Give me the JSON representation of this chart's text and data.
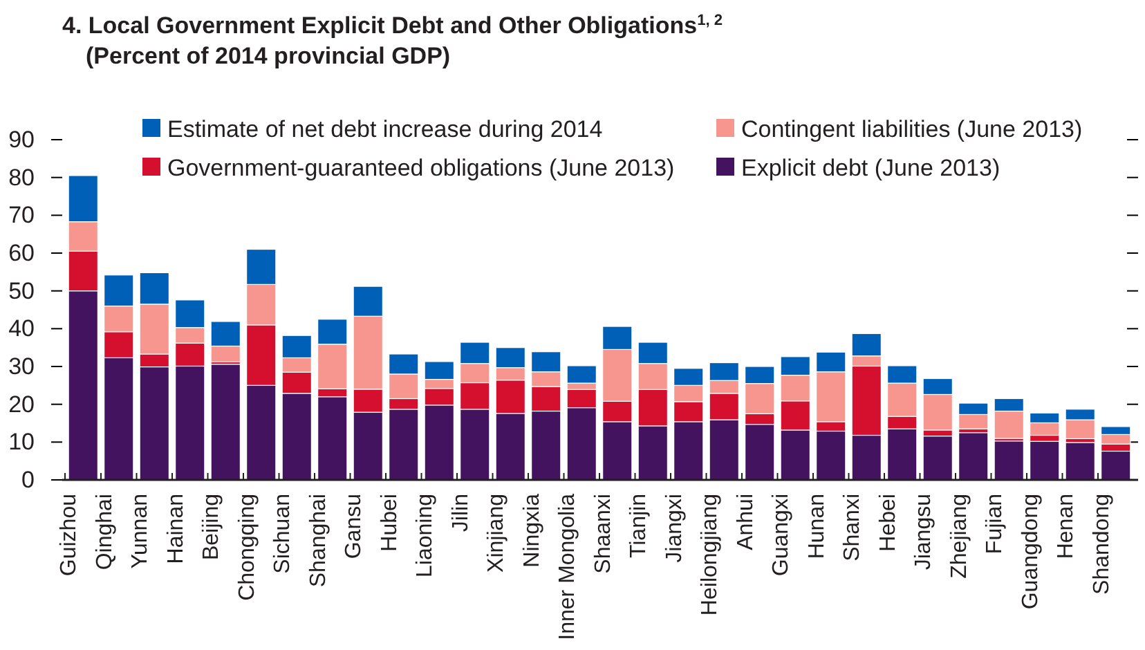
{
  "chart_data": {
    "type": "bar",
    "title": "4. Local Government Explicit Debt and Other Obligations$^{1, 2}$",
    "subtitle": "(Percent of 2014 provincial GDP)",
    "categories": [
      "Guizhou",
      "Qinghai",
      "Yunnan",
      "Hainan",
      "Beijing",
      "Chongqing",
      "Sichuan",
      "Shanghai",
      "Gansu",
      "Hubei",
      "Liaoning",
      "Jilin",
      "Xinjiang",
      "Ningxia",
      "Inner Mongolia",
      "Shaanxi",
      "Tianjin",
      "Jiangxi",
      "Heilongjiang",
      "Anhui",
      "Guangxi",
      "Hunan",
      "Shanxi",
      "Hebei",
      "Jiangsu",
      "Zhejiang",
      "Fujian",
      "Guangdong",
      "Henan",
      "Shandong"
    ],
    "stacked": true,
    "series": [
      {
        "name": "Explicit debt (June 2013)",
        "color": "#44135f",
        "values": [
          50,
          32.3,
          29.9,
          30.1,
          30.6,
          25,
          22.9,
          22,
          17.9,
          18.7,
          19.8,
          18.7,
          17.6,
          18.2,
          19.1,
          15.4,
          14.3,
          15.4,
          15.9,
          14.7,
          13.2,
          12.9,
          11.8,
          13.5,
          11.6,
          12.5,
          10.3,
          10.2,
          9.9,
          7.6
        ]
      },
      {
        "name": "Government-guaranteed obligations (June 2013)",
        "color": "#d50f2e",
        "values": [
          10.5,
          6.9,
          3.4,
          6.1,
          0.6,
          16,
          5.6,
          2.1,
          6.1,
          2.8,
          4.4,
          7,
          8.8,
          6.5,
          4.8,
          5.4,
          9.6,
          5.3,
          7,
          2.8,
          7.7,
          2.5,
          18.3,
          3.3,
          1.6,
          1,
          0.7,
          1.6,
          1,
          1.9
        ]
      },
      {
        "name": "Contingent liabilities (June 2013)",
        "color": "#f7968e",
        "values": [
          7.8,
          6.8,
          13.2,
          4.1,
          4.2,
          10.7,
          3.8,
          11.8,
          19.3,
          6.5,
          2.4,
          5.1,
          3.3,
          3.9,
          1.7,
          13.7,
          6.9,
          4.3,
          3.4,
          8,
          6.8,
          13.2,
          2.7,
          8.8,
          9.4,
          3.8,
          7.2,
          3.3,
          5,
          2.5
        ]
      },
      {
        "name": "Estimate of net debt increase during 2014",
        "color": "#0060b8",
        "values": [
          12.2,
          8.2,
          8.3,
          7.3,
          6.5,
          9.3,
          5.9,
          6.6,
          7.9,
          5.3,
          4.7,
          5.6,
          5.3,
          5.3,
          4.6,
          6.1,
          5.6,
          4.5,
          4.7,
          4.5,
          4.9,
          5.2,
          5.9,
          4.6,
          4.2,
          3,
          3.3,
          2.6,
          2.8,
          2.1
        ]
      }
    ],
    "ylim": [
      0,
      90
    ],
    "yticks": [
      0,
      10,
      20,
      30,
      40,
      50,
      60,
      70,
      80,
      90
    ],
    "grid": false,
    "legend": "top"
  }
}
